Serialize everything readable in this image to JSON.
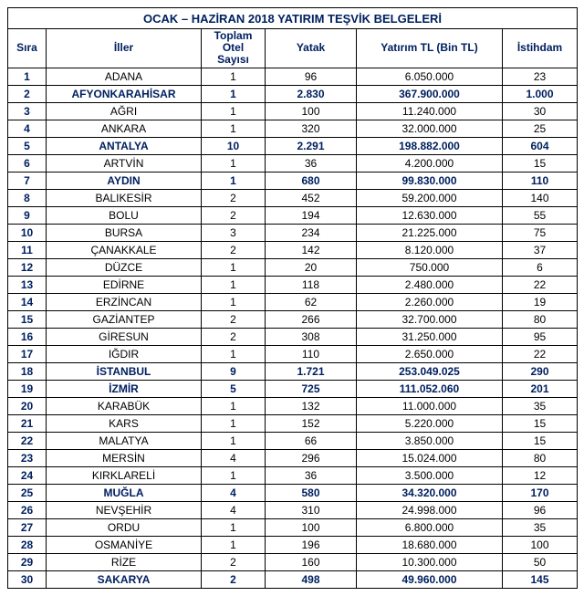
{
  "title": "OCAK – HAZİRAN  2018  YATIRIM TEŞVİK BELGELERİ",
  "columns": {
    "sira": "Sıra",
    "iller": "İller",
    "otel": "Toplam Otel Sayısı",
    "yatak": "Yatak",
    "yatirim": "Yatırım TL (Bin TL)",
    "istihdam": "İstihdam"
  },
  "rows": [
    {
      "n": "1",
      "il": "ADANA",
      "otel": "1",
      "yatak": "96",
      "yatirim": "6.050.000",
      "ist": "23",
      "bold": false
    },
    {
      "n": "2",
      "il": "AFYONKARAHİSAR",
      "otel": "1",
      "yatak": "2.830",
      "yatirim": "367.900.000",
      "ist": "1.000",
      "bold": true
    },
    {
      "n": "3",
      "il": "AĞRI",
      "otel": "1",
      "yatak": "100",
      "yatirim": "11.240.000",
      "ist": "30",
      "bold": false
    },
    {
      "n": "4",
      "il": "ANKARA",
      "otel": "1",
      "yatak": "320",
      "yatirim": "32.000.000",
      "ist": "25",
      "bold": false
    },
    {
      "n": "5",
      "il": "ANTALYA",
      "otel": "10",
      "yatak": "2.291",
      "yatirim": "198.882.000",
      "ist": "604",
      "bold": true
    },
    {
      "n": "6",
      "il": "ARTVİN",
      "otel": "1",
      "yatak": "36",
      "yatirim": "4.200.000",
      "ist": "15",
      "bold": false
    },
    {
      "n": "7",
      "il": "AYDIN",
      "otel": "1",
      "yatak": "680",
      "yatirim": "99.830.000",
      "ist": "110",
      "bold": true
    },
    {
      "n": "8",
      "il": "BALIKESİR",
      "otel": "2",
      "yatak": "452",
      "yatirim": "59.200.000",
      "ist": "140",
      "bold": false
    },
    {
      "n": "9",
      "il": "BOLU",
      "otel": "2",
      "yatak": "194",
      "yatirim": "12.630.000",
      "ist": "55",
      "bold": false
    },
    {
      "n": "10",
      "il": "BURSA",
      "otel": "3",
      "yatak": "234",
      "yatirim": "21.225.000",
      "ist": "75",
      "bold": false
    },
    {
      "n": "11",
      "il": "ÇANAKKALE",
      "otel": "2",
      "yatak": "142",
      "yatirim": "8.120.000",
      "ist": "37",
      "bold": false
    },
    {
      "n": "12",
      "il": "DÜZCE",
      "otel": "1",
      "yatak": "20",
      "yatirim": "750.000",
      "ist": "6",
      "bold": false
    },
    {
      "n": "13",
      "il": "EDİRNE",
      "otel": "1",
      "yatak": "118",
      "yatirim": "2.480.000",
      "ist": "22",
      "bold": false
    },
    {
      "n": "14",
      "il": "ERZİNCAN",
      "otel": "1",
      "yatak": "62",
      "yatirim": "2.260.000",
      "ist": "19",
      "bold": false
    },
    {
      "n": "15",
      "il": "GAZİANTEP",
      "otel": "2",
      "yatak": "266",
      "yatirim": "32.700.000",
      "ist": "80",
      "bold": false
    },
    {
      "n": "16",
      "il": "GİRESUN",
      "otel": "2",
      "yatak": "308",
      "yatirim": "31.250.000",
      "ist": "95",
      "bold": false
    },
    {
      "n": "17",
      "il": "IĞDIR",
      "otel": "1",
      "yatak": "110",
      "yatirim": "2.650.000",
      "ist": "22",
      "bold": false
    },
    {
      "n": "18",
      "il": "İSTANBUL",
      "otel": "9",
      "yatak": "1.721",
      "yatirim": "253.049.025",
      "ist": "290",
      "bold": true
    },
    {
      "n": "19",
      "il": "İZMİR",
      "otel": "5",
      "yatak": "725",
      "yatirim": "111.052.060",
      "ist": "201",
      "bold": true
    },
    {
      "n": "20",
      "il": "KARABÜK",
      "otel": "1",
      "yatak": "132",
      "yatirim": "11.000.000",
      "ist": "35",
      "bold": false
    },
    {
      "n": "21",
      "il": "KARS",
      "otel": "1",
      "yatak": "152",
      "yatirim": "5.220.000",
      "ist": "15",
      "bold": false
    },
    {
      "n": "22",
      "il": "MALATYA",
      "otel": "1",
      "yatak": "66",
      "yatirim": "3.850.000",
      "ist": "15",
      "bold": false
    },
    {
      "n": "23",
      "il": "MERSİN",
      "otel": "4",
      "yatak": "296",
      "yatirim": "15.024.000",
      "ist": "80",
      "bold": false
    },
    {
      "n": "24",
      "il": "KIRKLARELİ",
      "otel": "1",
      "yatak": "36",
      "yatirim": "3.500.000",
      "ist": "12",
      "bold": false
    },
    {
      "n": "25",
      "il": "MUĞLA",
      "otel": "4",
      "yatak": "580",
      "yatirim": "34.320.000",
      "ist": "170",
      "bold": true
    },
    {
      "n": "26",
      "il": "NEVŞEHİR",
      "otel": "4",
      "yatak": "310",
      "yatirim": "24.998.000",
      "ist": "96",
      "bold": false
    },
    {
      "n": "27",
      "il": "ORDU",
      "otel": "1",
      "yatak": "100",
      "yatirim": "6.800.000",
      "ist": "35",
      "bold": false
    },
    {
      "n": "28",
      "il": "OSMANİYE",
      "otel": "1",
      "yatak": "196",
      "yatirim": "18.680.000",
      "ist": "100",
      "bold": false
    },
    {
      "n": "29",
      "il": "RİZE",
      "otel": "2",
      "yatak": "160",
      "yatirim": "10.300.000",
      "ist": "50",
      "bold": false
    },
    {
      "n": "30",
      "il": "SAKARYA",
      "otel": "2",
      "yatak": "498",
      "yatirim": "49.960.000",
      "ist": "145",
      "bold": true
    }
  ]
}
